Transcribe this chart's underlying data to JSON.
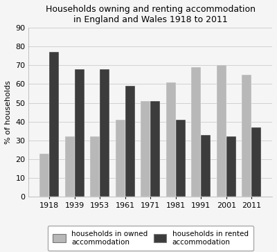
{
  "title_line1": "Households owning and renting accommodation",
  "title_line2": "in England and Wales 1918 to 2011",
  "years": [
    "1918",
    "1939",
    "1953",
    "1961",
    "1971",
    "1981",
    "1991",
    "2001",
    "2011"
  ],
  "owned": [
    23,
    32,
    32,
    41,
    51,
    61,
    69,
    70,
    65
  ],
  "rented": [
    77,
    68,
    68,
    59,
    51,
    41,
    33,
    32,
    37
  ],
  "owned_color": "#b8b8b8",
  "rented_color": "#3c3c3c",
  "ylabel": "% of households",
  "ylim": [
    0,
    90
  ],
  "yticks": [
    0,
    10,
    20,
    30,
    40,
    50,
    60,
    70,
    80,
    90
  ],
  "legend_owned": "households in owned\naccommodation",
  "legend_rented": "households in rented\naccommodation",
  "bar_width": 0.38,
  "background_color": "#f5f5f5",
  "grid_color": "#d0d0d0",
  "title_fontsize": 9,
  "axis_fontsize": 8,
  "legend_fontsize": 7.5
}
